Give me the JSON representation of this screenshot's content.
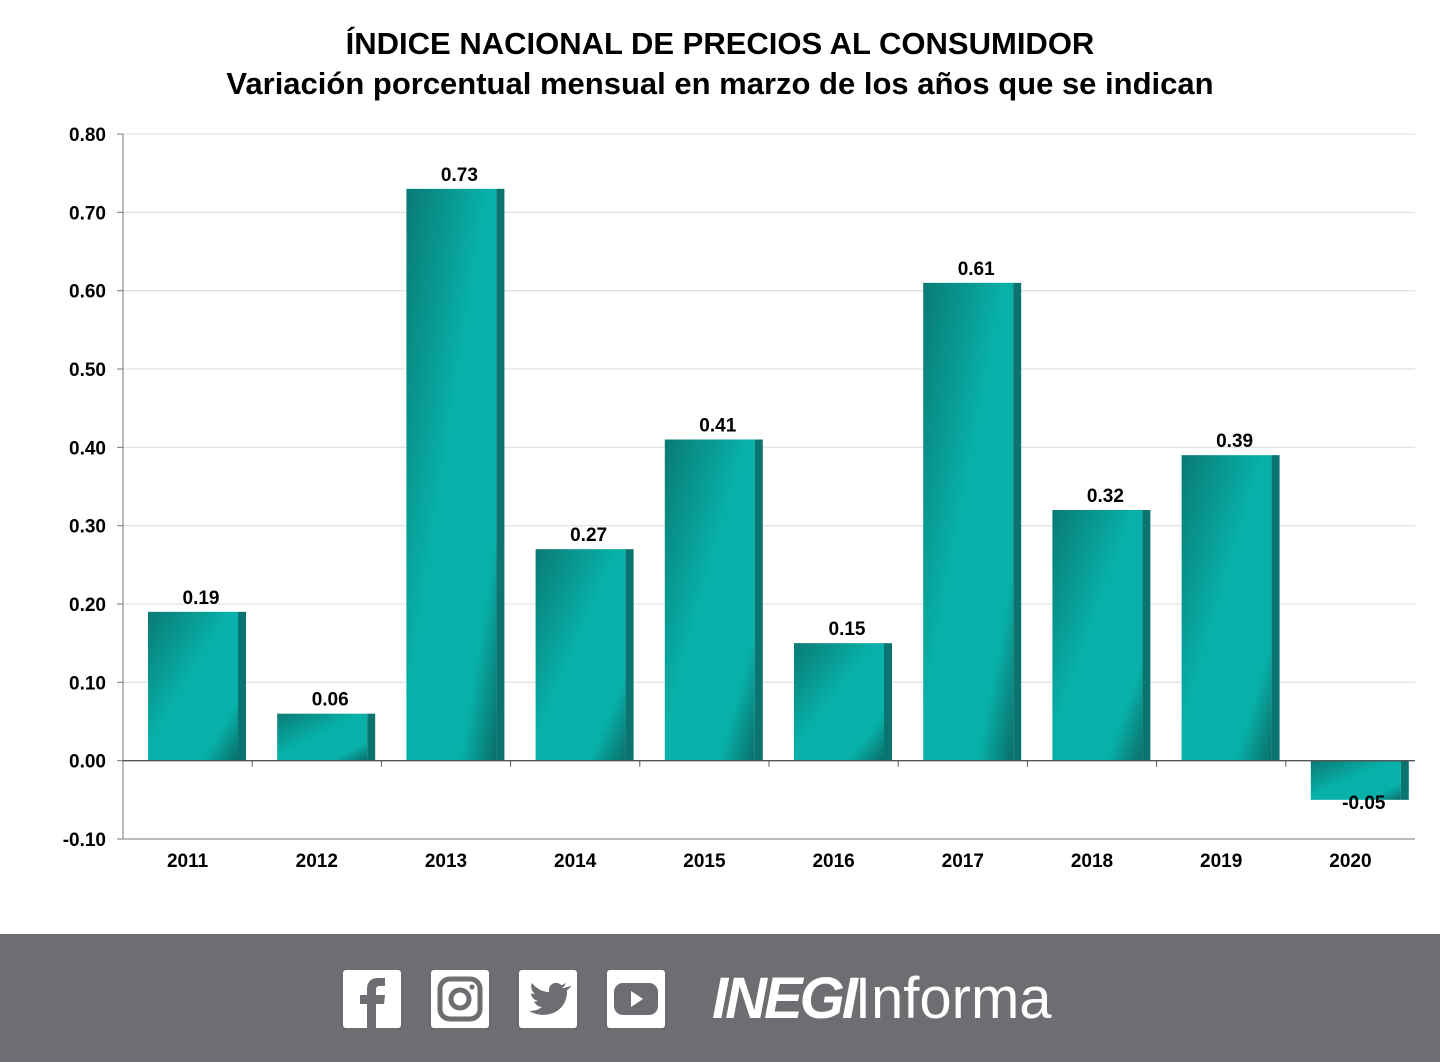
{
  "chart_data": {
    "type": "bar",
    "title": "ÍNDICE NACIONAL DE PRECIOS AL CONSUMIDOR",
    "subtitle": "Variación porcentual mensual en marzo de los años que se indican",
    "categories": [
      "2011",
      "2012",
      "2013",
      "2014",
      "2015",
      "2016",
      "2017",
      "2018",
      "2019",
      "2020"
    ],
    "values": [
      0.19,
      0.06,
      0.73,
      0.27,
      0.41,
      0.15,
      0.61,
      0.32,
      0.39,
      -0.05
    ],
    "labels": [
      "0.19",
      "0.06",
      "0.73",
      "0.27",
      "0.41",
      "0.15",
      "0.61",
      "0.32",
      "0.39",
      "-0.05"
    ],
    "ylim": [
      -0.1,
      0.8
    ],
    "yticks": [
      "0.80",
      "0.70",
      "0.60",
      "0.50",
      "0.40",
      "0.30",
      "0.20",
      "0.10",
      "0.00",
      "-0.10"
    ],
    "ytick_values": [
      0.8,
      0.7,
      0.6,
      0.5,
      0.4,
      0.3,
      0.2,
      0.1,
      0.0,
      -0.1
    ],
    "grid": true,
    "xlabel": "",
    "ylabel": "",
    "bar_color": "#07b0a8",
    "bar_dark": "#0a7470"
  },
  "footer": {
    "brand_bold": "INEGI",
    "brand_light": "Informa",
    "icons": [
      "facebook-icon",
      "instagram-icon",
      "twitter-icon",
      "youtube-icon"
    ]
  }
}
